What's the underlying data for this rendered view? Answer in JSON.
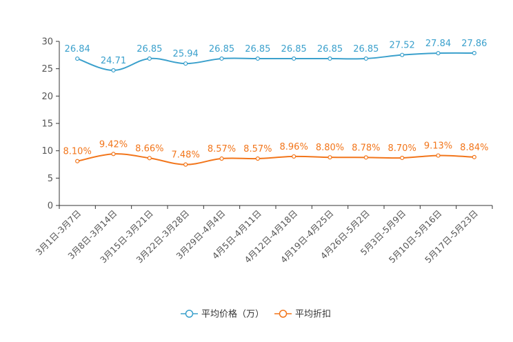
{
  "chart_data": {
    "type": "line",
    "title": "",
    "xlabel": "",
    "ylabel": "",
    "ylim": [
      0,
      30
    ],
    "yticks": [
      0,
      5,
      10,
      15,
      20,
      25,
      30
    ],
    "grid": false,
    "legend_position": "bottom-center",
    "categories": [
      "3月1日-3月7日",
      "3月8日-3月14日",
      "3月15日-3月21日",
      "3月22日-3月28日",
      "3月29日-4月4日",
      "4月5日-4月11日",
      "4月12日-4月18日",
      "4月19日-4月25日",
      "4月26日-5月2日",
      "5月3日-5月9日",
      "5月10日-5月16日",
      "5月17日-5月23日"
    ],
    "series": [
      {
        "name": "平均价格（万）",
        "color": "#3aa0cc",
        "values": [
          26.84,
          24.71,
          26.85,
          25.94,
          26.85,
          26.85,
          26.85,
          26.85,
          26.85,
          27.52,
          27.84,
          27.86
        ],
        "labels": [
          "26.84",
          "24.71",
          "26.85",
          "25.94",
          "26.85",
          "26.85",
          "26.85",
          "26.85",
          "26.85",
          "27.52",
          "27.84",
          "27.86"
        ]
      },
      {
        "name": "平均折扣",
        "color": "#f2751a",
        "values": [
          8.1,
          9.42,
          8.66,
          7.48,
          8.57,
          8.57,
          8.96,
          8.8,
          8.78,
          8.7,
          9.13,
          8.84
        ],
        "labels": [
          "8.10%",
          "9.42%",
          "8.66%",
          "7.48%",
          "8.57%",
          "8.57%",
          "8.96%",
          "8.80%",
          "8.78%",
          "8.70%",
          "9.13%",
          "8.84%"
        ]
      }
    ]
  }
}
